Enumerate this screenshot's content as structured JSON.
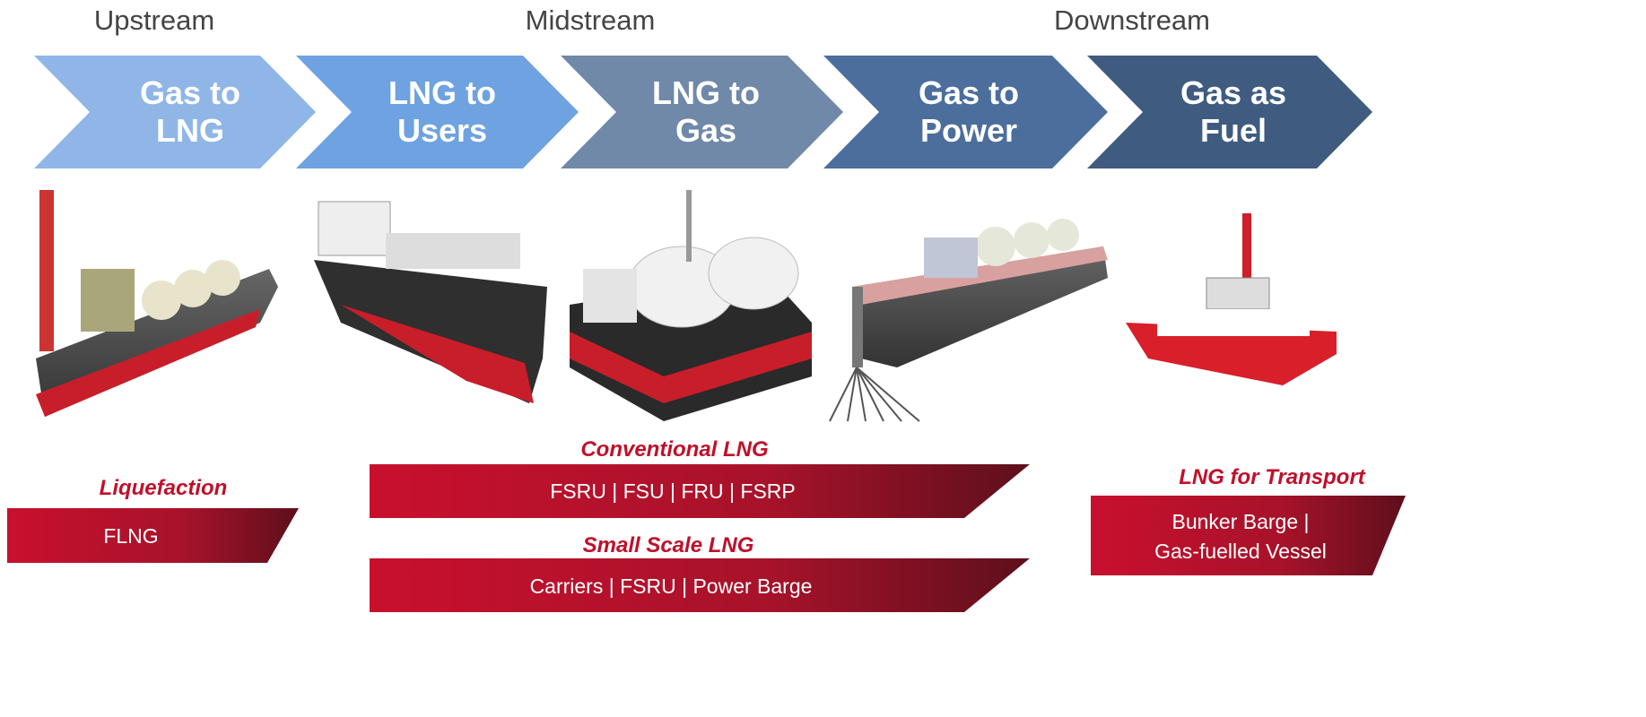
{
  "stages": [
    "Upstream",
    "Midstream",
    "Downstream"
  ],
  "chevrons": [
    {
      "lines": [
        "Gas to",
        "LNG"
      ]
    },
    {
      "lines": [
        "LNG to",
        "Users"
      ]
    },
    {
      "lines": [
        "LNG to",
        "Gas"
      ]
    },
    {
      "lines": [
        "Gas to",
        "Power"
      ]
    },
    {
      "lines": [
        "Gas as",
        "Fuel"
      ]
    }
  ],
  "groups": [
    {
      "title": "Liquefaction",
      "lines": [
        "FLNG"
      ]
    },
    {
      "title": "Conventional LNG",
      "lines": [
        "FSRU | FSU | FRU | FSRP"
      ]
    },
    {
      "title": "Small Scale LNG",
      "lines": [
        "Carriers | FSRU | Power Barge"
      ]
    },
    {
      "title": "LNG for Transport",
      "lines": [
        "Bunker Barge |",
        "Gas-fuelled Vessel"
      ]
    }
  ]
}
